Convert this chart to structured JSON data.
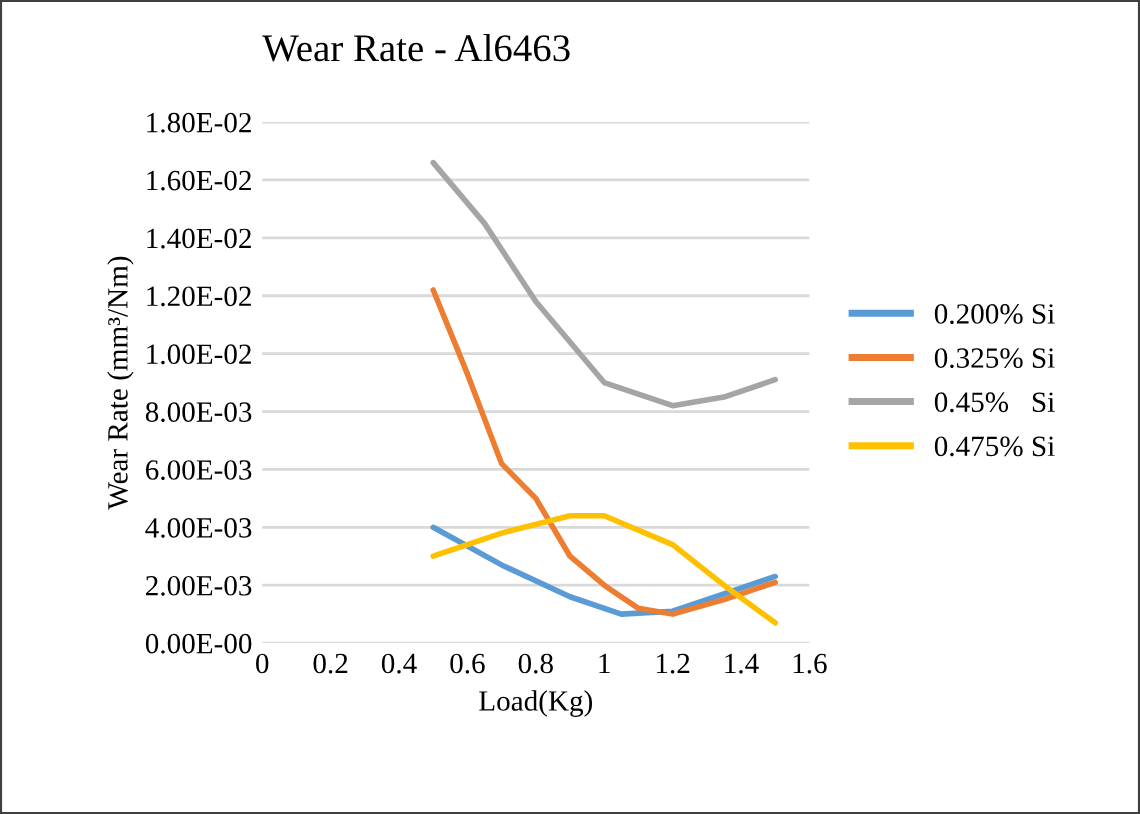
{
  "chart_data": {
    "type": "line",
    "title": "Wear Rate - Al6463",
    "xlabel": "Load(Kg)",
    "ylabel": "Wear Rate (mm³/Nm)",
    "xlim": [
      0,
      1.6
    ],
    "xticks": [
      0,
      0.2,
      0.4,
      0.6,
      0.8,
      1,
      1.2,
      1.4,
      1.6
    ],
    "ylim": [
      0,
      0.018
    ],
    "yticks": [
      {
        "value": 0,
        "label": "0.00E-00"
      },
      {
        "value": 0.002,
        "label": "2.00E-03"
      },
      {
        "value": 0.004,
        "label": "4.00E-03"
      },
      {
        "value": 0.006,
        "label": "6.00E-03"
      },
      {
        "value": 0.008,
        "label": "8.00E-03"
      },
      {
        "value": 0.01,
        "label": "1.00E-02"
      },
      {
        "value": 0.012,
        "label": "1.20E-02"
      },
      {
        "value": 0.014,
        "label": "1.40E-02"
      },
      {
        "value": 0.016,
        "label": "1.60E-02"
      },
      {
        "value": 0.018,
        "label": "1.80E-02"
      }
    ],
    "grid": "y",
    "legend": "right",
    "marker": "none",
    "line_style": "solid",
    "series": [
      {
        "name": "0.200% Si",
        "color": "#5b9bd5",
        "x": [
          0.5,
          0.7,
          0.9,
          1.05,
          1.2,
          1.35,
          1.5
        ],
        "values": [
          0.004,
          0.0027,
          0.0016,
          0.001,
          0.0011,
          0.0017,
          0.0023
        ]
      },
      {
        "name": "0.325% Si",
        "color": "#ed7d31",
        "x": [
          0.5,
          0.6,
          0.7,
          0.8,
          0.9,
          1.0,
          1.1,
          1.2,
          1.35,
          1.5
        ],
        "values": [
          0.0122,
          0.0093,
          0.0062,
          0.005,
          0.003,
          0.002,
          0.0012,
          0.001,
          0.0015,
          0.0021
        ]
      },
      {
        "name": "0.45%   Si",
        "color": "#a5a5a5",
        "x": [
          0.5,
          0.65,
          0.8,
          1.0,
          1.2,
          1.35,
          1.5
        ],
        "values": [
          0.0166,
          0.0145,
          0.0118,
          0.009,
          0.0082,
          0.0085,
          0.0091
        ]
      },
      {
        "name": "0.475% Si",
        "color": "#ffc000",
        "x": [
          0.5,
          0.7,
          0.9,
          1.0,
          1.2,
          1.35,
          1.5
        ],
        "values": [
          0.003,
          0.0038,
          0.0044,
          0.0044,
          0.0034,
          0.002,
          0.0007
        ]
      }
    ]
  }
}
